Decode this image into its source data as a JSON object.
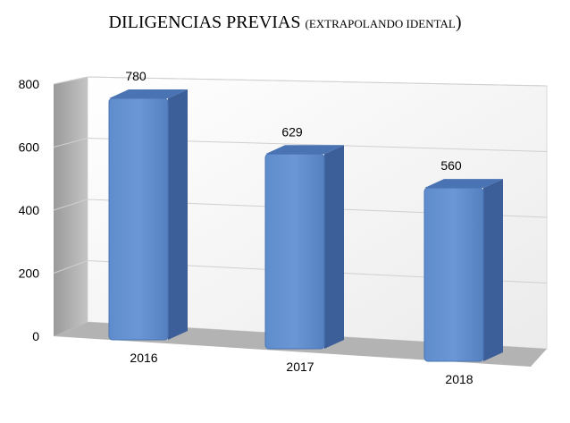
{
  "chart_data": {
    "type": "bar",
    "title": "DILIGENCIAS PREVIAS",
    "subtitle": "EXTRAPOLANDO IDENTAL",
    "categories": [
      "2016",
      "2017",
      "2018"
    ],
    "values": [
      780,
      629,
      560
    ],
    "data_labels": [
      "780",
      "629",
      "560"
    ],
    "yticks": [
      "0",
      "200",
      "400",
      "600",
      "800"
    ],
    "ylim": [
      0,
      800
    ],
    "grid": true,
    "legend": "none",
    "style": "3d-columns",
    "colors": {
      "bar_front": "#5b87c7",
      "bar_side": "#3d5f99",
      "bar_top": "#4a73b3",
      "back_wall": "#f2f2f2",
      "side_wall": "#a8a8a8",
      "floor": "#b3b3b3",
      "grid": "#d0d0d0"
    }
  }
}
